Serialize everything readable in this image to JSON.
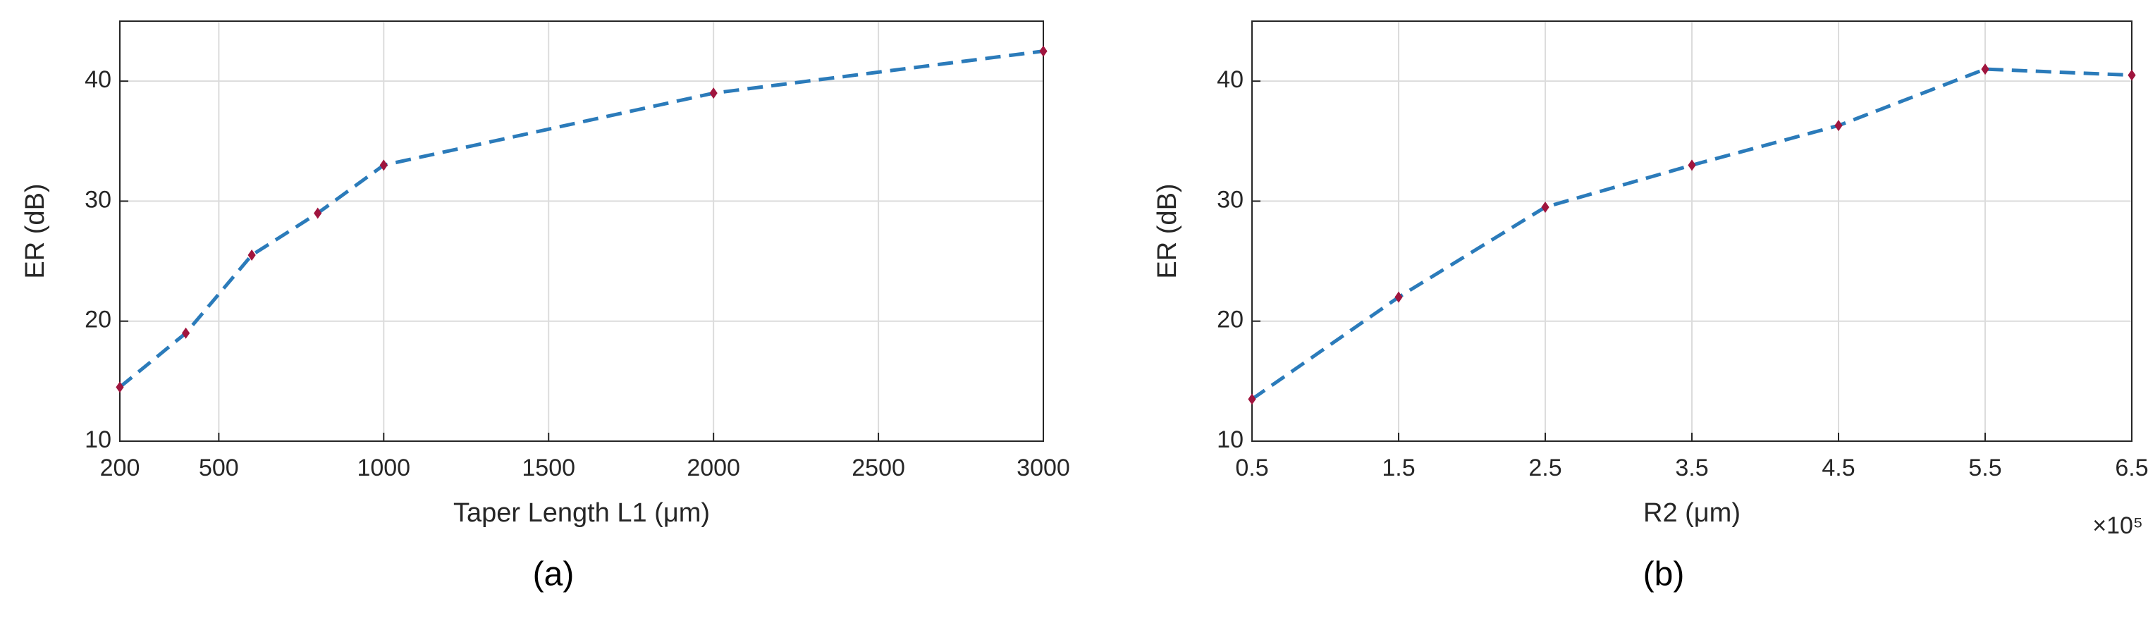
{
  "chart_data": [
    {
      "type": "line",
      "caption": "(a)",
      "xlabel": "Taper Length L1 (μm)",
      "ylabel": "ER (dB)",
      "x": [
        200,
        400,
        600,
        800,
        1000,
        2000,
        3000
      ],
      "series": [
        {
          "color": "#2b7bba",
          "marker_color": "#a0153e",
          "values": [
            14.5,
            19,
            25.5,
            29,
            33,
            39,
            42.5
          ]
        }
      ],
      "xlim": [
        200,
        3000
      ],
      "xticks": [
        200,
        500,
        1000,
        1500,
        2000,
        2500,
        3000
      ],
      "ylim": [
        10,
        45
      ],
      "yticks": [
        10,
        20,
        30,
        40
      ],
      "grid": true
    },
    {
      "type": "line",
      "caption": "(b)",
      "xlabel": "R2 (μm)",
      "ylabel": "ER (dB)",
      "x_exponent": "×10⁵",
      "x": [
        50000,
        150000,
        250000,
        350000,
        450000,
        550000,
        650000
      ],
      "series": [
        {
          "color": "#2b7bba",
          "marker_color": "#a0153e",
          "values": [
            13.5,
            22,
            29.5,
            33,
            36.3,
            41,
            40.5
          ]
        }
      ],
      "xlim": [
        50000,
        650000
      ],
      "xticks": [
        {
          "value": 50000,
          "label": "0.5"
        },
        {
          "value": 150000,
          "label": "1.5"
        },
        {
          "value": 250000,
          "label": "2.5"
        },
        {
          "value": 350000,
          "label": "3.5"
        },
        {
          "value": 450000,
          "label": "4.5"
        },
        {
          "value": 550000,
          "label": "5.5"
        },
        {
          "value": 650000,
          "label": "6.5"
        }
      ],
      "ylim": [
        10,
        45
      ],
      "yticks": [
        10,
        20,
        30,
        40
      ],
      "grid": true
    }
  ]
}
